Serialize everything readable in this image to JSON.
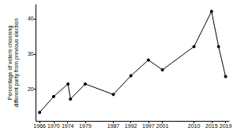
{
  "chart_data": {
    "type": "line",
    "y_label": "Percentage of voters choosing\ndifferent party from previous election",
    "x": [
      1966,
      1970,
      1974.1,
      1974.8,
      1979,
      1987,
      1992,
      1997,
      2001,
      2010,
      2015,
      2017,
      2019
    ],
    "values": [
      13.4,
      17.9,
      21.5,
      17.2,
      21.5,
      18.5,
      23.8,
      28.3,
      25.5,
      32.1,
      42.1,
      32.1,
      23.6
    ],
    "color": "#000000",
    "marker": "circle",
    "xlim": [
      1965,
      2020
    ],
    "xticks": [
      1966,
      1970,
      1974,
      1979,
      1987,
      1992,
      1997,
      2001,
      2010,
      2015,
      2019
    ],
    "ylim": [
      11,
      44
    ],
    "yticks": [
      20,
      30,
      40
    ],
    "grid": false
  }
}
